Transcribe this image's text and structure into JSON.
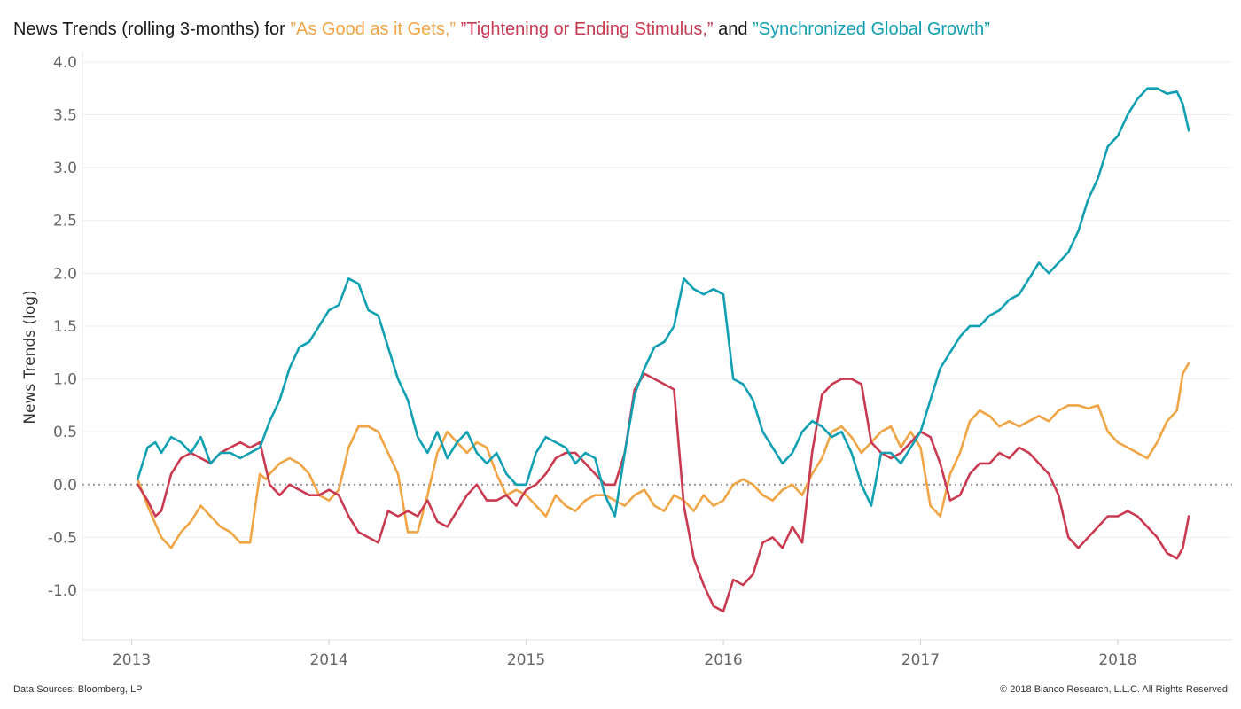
{
  "title": {
    "prefix": "News Trends (rolling 3-months) for ",
    "s1": "”As Good as it Gets,”",
    "s2": "”Tightening or Ending Stimulus,”",
    "mid": " and ",
    "s3": "”Synchronized Global Growth”"
  },
  "footer": {
    "left": "Data Sources: Bloomberg, LP",
    "right": "© 2018 Bianco Research, L.L.C. All Rights Reserved"
  },
  "chart_data": {
    "type": "line",
    "ylabel": "News Trends (log)",
    "xlabel": "",
    "ylim": [
      -1.47,
      4.1
    ],
    "xlim": [
      2012.75,
      2018.58
    ],
    "yticks": [
      "4.0",
      "3.5",
      "3.0",
      "2.5",
      "2.0",
      "1.5",
      "1.0",
      "0.5",
      "0.0",
      "-0.5",
      "-1.0"
    ],
    "ytick_values": [
      4.0,
      3.5,
      3.0,
      2.5,
      2.0,
      1.5,
      1.0,
      0.5,
      0.0,
      -0.5,
      -1.0
    ],
    "xticks": [
      "2013",
      "2014",
      "2015",
      "2016",
      "2017",
      "2018"
    ],
    "xtick_values": [
      2013,
      2014,
      2015,
      2016,
      2017,
      2018
    ],
    "zero_line": "dotted",
    "grid": "horizontal",
    "series": [
      {
        "name": "”As Good as it Gets,”",
        "color": "#f0a444",
        "x": [
          2013.03,
          2013.08,
          2013.15,
          2013.2,
          2013.25,
          2013.3,
          2013.35,
          2013.4,
          2013.45,
          2013.5,
          2013.55,
          2013.6,
          2013.65,
          2013.68,
          2013.7,
          2013.75,
          2013.8,
          2013.85,
          2013.9,
          2013.95,
          2014.0,
          2014.05,
          2014.1,
          2014.15,
          2014.2,
          2014.25,
          2014.3,
          2014.35,
          2014.4,
          2014.45,
          2014.5,
          2014.55,
          2014.6,
          2014.65,
          2014.7,
          2014.75,
          2014.8,
          2014.85,
          2014.9,
          2014.95,
          2015.0,
          2015.05,
          2015.1,
          2015.15,
          2015.2,
          2015.25,
          2015.3,
          2015.35,
          2015.4,
          2015.45,
          2015.5,
          2015.55,
          2015.6,
          2015.65,
          2015.7,
          2015.75,
          2015.8,
          2015.85,
          2015.9,
          2015.95,
          2016.0,
          2016.05,
          2016.1,
          2016.15,
          2016.2,
          2016.25,
          2016.3,
          2016.35,
          2016.4,
          2016.45,
          2016.5,
          2016.55,
          2016.6,
          2016.65,
          2016.7,
          2016.75,
          2016.8,
          2016.85,
          2016.9,
          2016.95,
          2017.0,
          2017.05,
          2017.1,
          2017.15,
          2017.2,
          2017.25,
          2017.3,
          2017.35,
          2017.4,
          2017.45,
          2017.5,
          2017.55,
          2017.6,
          2017.65,
          2017.7,
          2017.75,
          2017.8,
          2017.85,
          2017.9,
          2017.95,
          2018.0,
          2018.05,
          2018.1,
          2018.15,
          2018.2,
          2018.25,
          2018.3,
          2018.33,
          2018.36
        ],
        "values": [
          0.05,
          -0.2,
          -0.5,
          -0.6,
          -0.45,
          -0.35,
          -0.2,
          -0.3,
          -0.4,
          -0.45,
          -0.55,
          -0.55,
          0.1,
          0.05,
          0.1,
          0.2,
          0.25,
          0.2,
          0.1,
          -0.1,
          -0.15,
          -0.05,
          0.35,
          0.55,
          0.55,
          0.5,
          0.3,
          0.1,
          -0.45,
          -0.45,
          -0.1,
          0.3,
          0.5,
          0.4,
          0.3,
          0.4,
          0.35,
          0.1,
          -0.1,
          -0.05,
          -0.1,
          -0.2,
          -0.3,
          -0.1,
          -0.2,
          -0.25,
          -0.15,
          -0.1,
          -0.1,
          -0.15,
          -0.2,
          -0.1,
          -0.05,
          -0.2,
          -0.25,
          -0.1,
          -0.15,
          -0.25,
          -0.1,
          -0.2,
          -0.15,
          0.0,
          0.05,
          0.0,
          -0.1,
          -0.15,
          -0.05,
          0.0,
          -0.1,
          0.1,
          0.25,
          0.5,
          0.55,
          0.45,
          0.3,
          0.4,
          0.5,
          0.55,
          0.35,
          0.5,
          0.35,
          -0.2,
          -0.3,
          0.1,
          0.3,
          0.6,
          0.7,
          0.65,
          0.55,
          0.6,
          0.55,
          0.6,
          0.65,
          0.6,
          0.7,
          0.75,
          0.75,
          0.72,
          0.75,
          0.5,
          0.4,
          0.35,
          0.3,
          0.25,
          0.4,
          0.6,
          0.7,
          1.05,
          1.15
        ]
      },
      {
        "name": "”Tightening or Ending Stimulus,”",
        "color": "#c93a51",
        "x": [
          2013.03,
          2013.08,
          2013.12,
          2013.15,
          2013.2,
          2013.25,
          2013.3,
          2013.35,
          2013.4,
          2013.45,
          2013.5,
          2013.55,
          2013.6,
          2013.65,
          2013.7,
          2013.75,
          2013.8,
          2013.85,
          2013.9,
          2013.95,
          2014.0,
          2014.05,
          2014.1,
          2014.15,
          2014.2,
          2014.25,
          2014.3,
          2014.35,
          2014.4,
          2014.45,
          2014.5,
          2014.55,
          2014.6,
          2014.65,
          2014.7,
          2014.75,
          2014.8,
          2014.85,
          2014.9,
          2014.95,
          2015.0,
          2015.05,
          2015.1,
          2015.15,
          2015.2,
          2015.25,
          2015.3,
          2015.35,
          2015.4,
          2015.45,
          2015.5,
          2015.55,
          2015.6,
          2015.65,
          2015.7,
          2015.75,
          2015.8,
          2015.85,
          2015.9,
          2015.95,
          2016.0,
          2016.05,
          2016.1,
          2016.15,
          2016.2,
          2016.25,
          2016.3,
          2016.35,
          2016.4,
          2016.45,
          2016.5,
          2016.55,
          2016.6,
          2016.65,
          2016.7,
          2016.75,
          2016.8,
          2016.85,
          2016.9,
          2016.95,
          2017.0,
          2017.05,
          2017.1,
          2017.15,
          2017.2,
          2017.25,
          2017.3,
          2017.35,
          2017.4,
          2017.45,
          2017.5,
          2017.55,
          2017.6,
          2017.65,
          2017.7,
          2017.75,
          2017.8,
          2017.85,
          2017.9,
          2017.95,
          2018.0,
          2018.05,
          2018.1,
          2018.15,
          2018.2,
          2018.25,
          2018.3,
          2018.33,
          2018.36
        ],
        "values": [
          0.0,
          -0.15,
          -0.3,
          -0.25,
          0.1,
          0.25,
          0.3,
          0.25,
          0.2,
          0.3,
          0.35,
          0.4,
          0.35,
          0.4,
          0.0,
          -0.1,
          0.0,
          -0.05,
          -0.1,
          -0.1,
          -0.05,
          -0.1,
          -0.3,
          -0.45,
          -0.5,
          -0.55,
          -0.25,
          -0.3,
          -0.25,
          -0.3,
          -0.15,
          -0.35,
          -0.4,
          -0.25,
          -0.1,
          0.0,
          -0.15,
          -0.15,
          -0.1,
          -0.2,
          -0.05,
          0.0,
          0.1,
          0.25,
          0.3,
          0.3,
          0.2,
          0.1,
          0.0,
          0.0,
          0.3,
          0.9,
          1.05,
          1.0,
          0.95,
          0.9,
          -0.2,
          -0.7,
          -0.95,
          -1.15,
          -1.2,
          -0.9,
          -0.95,
          -0.85,
          -0.55,
          -0.5,
          -0.6,
          -0.4,
          -0.55,
          0.3,
          0.85,
          0.95,
          1.0,
          1.0,
          0.95,
          0.4,
          0.3,
          0.25,
          0.3,
          0.4,
          0.5,
          0.45,
          0.2,
          -0.15,
          -0.1,
          0.1,
          0.2,
          0.2,
          0.3,
          0.25,
          0.35,
          0.3,
          0.2,
          0.1,
          -0.1,
          -0.5,
          -0.6,
          -0.5,
          -0.4,
          -0.3,
          -0.3,
          -0.25,
          -0.3,
          -0.4,
          -0.5,
          -0.65,
          -0.7,
          -0.6,
          -0.3
        ]
      },
      {
        "name": "”Synchronized Global Growth”",
        "color": "#11a0b2",
        "x": [
          2013.03,
          2013.08,
          2013.12,
          2013.15,
          2013.2,
          2013.25,
          2013.3,
          2013.35,
          2013.4,
          2013.45,
          2013.5,
          2013.55,
          2013.6,
          2013.65,
          2013.7,
          2013.75,
          2013.8,
          2013.85,
          2013.9,
          2013.95,
          2014.0,
          2014.05,
          2014.1,
          2014.15,
          2014.2,
          2014.25,
          2014.3,
          2014.35,
          2014.4,
          2014.45,
          2014.5,
          2014.55,
          2014.6,
          2014.65,
          2014.7,
          2014.75,
          2014.8,
          2014.85,
          2014.9,
          2014.95,
          2015.0,
          2015.05,
          2015.1,
          2015.15,
          2015.2,
          2015.25,
          2015.3,
          2015.35,
          2015.4,
          2015.45,
          2015.5,
          2015.55,
          2015.6,
          2015.65,
          2015.7,
          2015.75,
          2015.8,
          2015.85,
          2015.9,
          2015.95,
          2016.0,
          2016.05,
          2016.1,
          2016.15,
          2016.2,
          2016.25,
          2016.3,
          2016.35,
          2016.4,
          2016.45,
          2016.5,
          2016.55,
          2016.6,
          2016.65,
          2016.7,
          2016.75,
          2016.8,
          2016.85,
          2016.9,
          2016.95,
          2017.0,
          2017.05,
          2017.1,
          2017.15,
          2017.2,
          2017.25,
          2017.3,
          2017.35,
          2017.4,
          2017.45,
          2017.5,
          2017.55,
          2017.6,
          2017.65,
          2017.7,
          2017.75,
          2017.8,
          2017.85,
          2017.9,
          2017.95,
          2018.0,
          2018.05,
          2018.1,
          2018.15,
          2018.2,
          2018.25,
          2018.3,
          2018.33,
          2018.36
        ],
        "values": [
          0.05,
          0.35,
          0.4,
          0.3,
          0.45,
          0.4,
          0.3,
          0.45,
          0.2,
          0.3,
          0.3,
          0.25,
          0.3,
          0.35,
          0.6,
          0.8,
          1.1,
          1.3,
          1.35,
          1.5,
          1.65,
          1.7,
          1.95,
          1.9,
          1.65,
          1.6,
          1.3,
          1.0,
          0.8,
          0.45,
          0.3,
          0.5,
          0.25,
          0.4,
          0.5,
          0.3,
          0.2,
          0.3,
          0.1,
          0.0,
          0.0,
          0.3,
          0.45,
          0.4,
          0.35,
          0.2,
          0.3,
          0.25,
          -0.1,
          -0.3,
          0.3,
          0.85,
          1.1,
          1.3,
          1.35,
          1.5,
          1.95,
          1.85,
          1.8,
          1.85,
          1.8,
          1.0,
          0.95,
          0.8,
          0.5,
          0.35,
          0.2,
          0.3,
          0.5,
          0.6,
          0.55,
          0.45,
          0.5,
          0.3,
          0.0,
          -0.2,
          0.3,
          0.3,
          0.2,
          0.35,
          0.5,
          0.8,
          1.1,
          1.25,
          1.4,
          1.5,
          1.5,
          1.6,
          1.65,
          1.75,
          1.8,
          1.95,
          2.1,
          2.0,
          2.1,
          2.2,
          2.4,
          2.7,
          2.9,
          3.2,
          3.3,
          3.5,
          3.65,
          3.75,
          3.75,
          3.7,
          3.72,
          3.6,
          3.35
        ]
      }
    ]
  }
}
